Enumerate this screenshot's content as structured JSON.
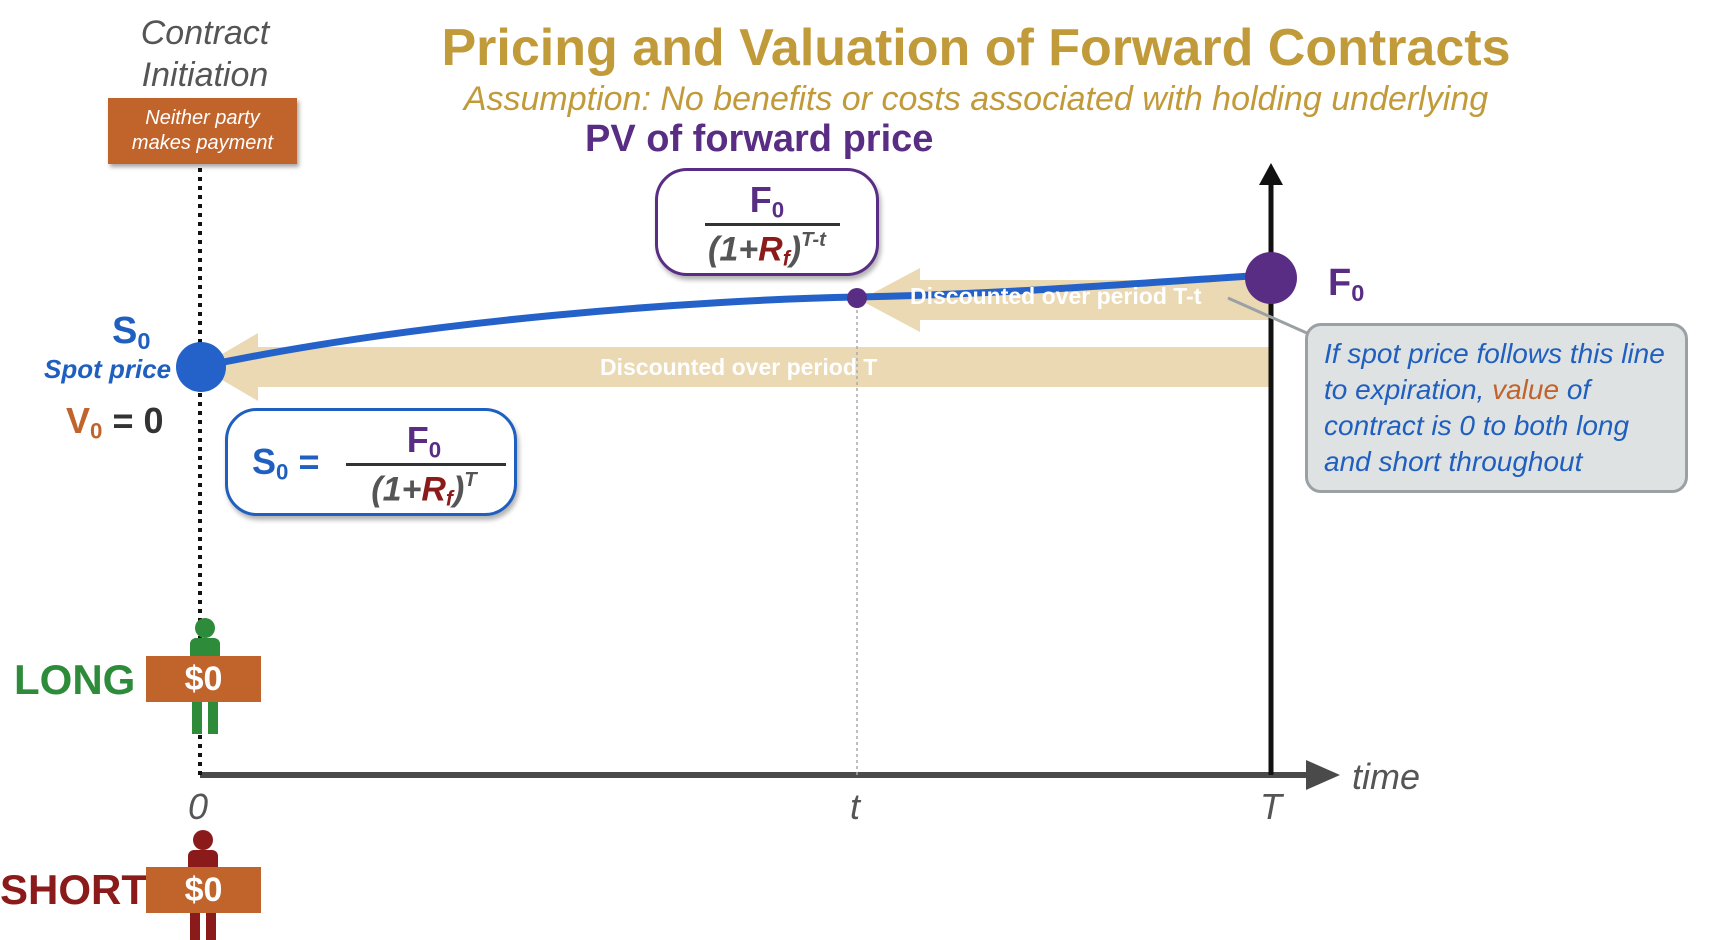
{
  "title": "Pricing and Valuation of Forward Contracts",
  "subtitle": "Assumption: No benefits or costs associated with holding underlying",
  "initiation": {
    "label_line1": "Contract",
    "label_line2": "Initiation",
    "badge_line1": "Neither party",
    "badge_line2": "makes payment"
  },
  "pv_label": "PV of forward price",
  "formula_pv": {
    "numerator": "F",
    "numerator_sub": "0",
    "denominator_prefix": "(1+",
    "denominator_r": "R",
    "denominator_r_sub": "f",
    "denominator_suffix": ")",
    "exponent": "T-t"
  },
  "formula_s0": {
    "lhs": "S",
    "lhs_sub": "0",
    "equals": " =",
    "numerator": "F",
    "numerator_sub": "0",
    "denominator_prefix": "(1+",
    "denominator_r": "R",
    "denominator_r_sub": "f",
    "denominator_suffix": ")",
    "exponent": "T"
  },
  "labels": {
    "s0": "S",
    "s0_sub": "0",
    "spot_price": "Spot price",
    "v0": "V",
    "v0_sub": "0",
    "v0_rest": " = 0",
    "f0": "F",
    "f0_sub": "0"
  },
  "arrows": {
    "discounted_t_minus": "Discounted over period T-t",
    "discounted_T": "Discounted over period T"
  },
  "note": {
    "part1": "If spot price follows this line to expiration, ",
    "highlight": "value",
    "part2": " of contract is 0 to both long and short throughout"
  },
  "axis": {
    "label": "time",
    "tick_0": "0",
    "tick_t": "t",
    "tick_T": "T"
  },
  "positions": {
    "long_label": "LONG",
    "long_payment": "$0",
    "short_label": "SHORT",
    "short_payment": "$0"
  },
  "colors": {
    "title": "#c19a3a",
    "spot": "#1f5fbf",
    "forward": "#5a2d84",
    "badge": "#c0642c",
    "long": "#2e8b3a",
    "short": "#8b1a1a",
    "arrow": "#ead9b3"
  }
}
